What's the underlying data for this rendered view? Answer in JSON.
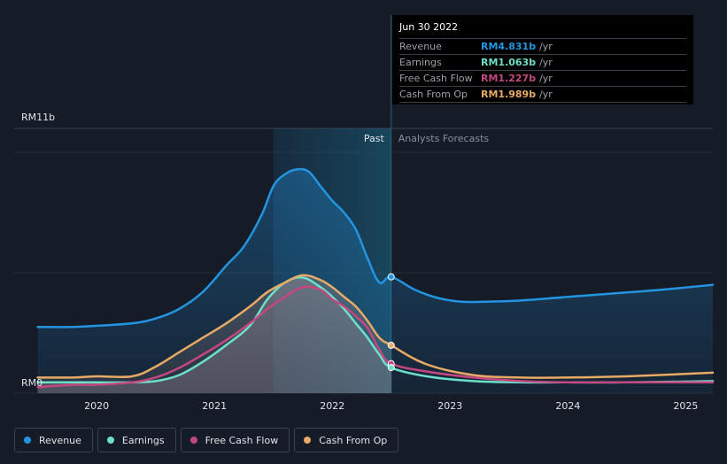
{
  "colors": {
    "revenue": "#2394df",
    "earnings": "#6ce0c8",
    "fcf": "#c4487f",
    "cfo": "#e8aa64",
    "background": "#151b27"
  },
  "tooltip": {
    "date": "Jun 30 2022",
    "rows": [
      {
        "label": "Revenue",
        "value": "RM4.831b",
        "unit": "/yr",
        "color": "#2394df"
      },
      {
        "label": "Earnings",
        "value": "RM1.063b",
        "unit": "/yr",
        "color": "#6ce0c8"
      },
      {
        "label": "Free Cash Flow",
        "value": "RM1.227b",
        "unit": "/yr",
        "color": "#c4487f"
      },
      {
        "label": "Cash From Op",
        "value": "RM1.989b",
        "unit": "/yr",
        "color": "#e8aa64"
      }
    ]
  },
  "chart_data": {
    "type": "line",
    "title": "",
    "ylabel": "",
    "ylim": [
      0,
      11
    ],
    "y_top_label": "RM11b",
    "y_bottom_label": "RM0",
    "x_ticks": [
      "2020",
      "2021",
      "2022",
      "2023",
      "2024",
      "2025"
    ],
    "x_tick_values": [
      2020,
      2021,
      2022,
      2023,
      2024,
      2025
    ],
    "xlim": [
      2019.3,
      2025.23
    ],
    "past_label": "Past",
    "forecast_label": "Analysts Forecasts",
    "divider_x": 2022.5,
    "highlight_range": [
      2021.5,
      2022.5
    ],
    "series": [
      {
        "name": "Revenue",
        "key": "revenue",
        "x": [
          2019.5,
          2019.8,
          2020.0,
          2020.3,
          2020.5,
          2020.7,
          2020.9,
          2021.1,
          2021.25,
          2021.4,
          2021.5,
          2021.6,
          2021.7,
          2021.8,
          2021.9,
          2022.0,
          2022.1,
          2022.2,
          2022.3,
          2022.4,
          2022.5,
          2022.7,
          2022.9,
          2023.1,
          2023.3,
          2023.6,
          2024.0,
          2024.4,
          2024.8,
          2025.23
        ],
        "values": [
          2.75,
          2.75,
          2.8,
          2.9,
          3.1,
          3.5,
          4.2,
          5.3,
          6.1,
          7.4,
          8.6,
          9.1,
          9.3,
          9.2,
          8.6,
          8.0,
          7.5,
          6.8,
          5.6,
          4.6,
          4.831,
          4.3,
          3.95,
          3.8,
          3.8,
          3.85,
          4.0,
          4.15,
          4.3,
          4.5
        ]
      },
      {
        "name": "Earnings",
        "key": "earnings",
        "x": [
          2019.5,
          2019.8,
          2020.0,
          2020.3,
          2020.5,
          2020.7,
          2020.9,
          2021.1,
          2021.3,
          2021.45,
          2021.6,
          2021.75,
          2021.9,
          2022.0,
          2022.1,
          2022.2,
          2022.3,
          2022.4,
          2022.5,
          2022.8,
          2023.2,
          2023.6,
          2024.0,
          2024.5,
          2025.23
        ],
        "values": [
          0.45,
          0.45,
          0.45,
          0.45,
          0.5,
          0.75,
          1.3,
          2.0,
          2.8,
          3.9,
          4.6,
          4.8,
          4.4,
          4.0,
          3.5,
          2.9,
          2.3,
          1.6,
          1.063,
          0.7,
          0.5,
          0.45,
          0.45,
          0.45,
          0.5
        ]
      },
      {
        "name": "Free Cash Flow",
        "key": "fcf",
        "x": [
          2019.5,
          2019.8,
          2020.0,
          2020.3,
          2020.5,
          2020.7,
          2020.9,
          2021.1,
          2021.3,
          2021.45,
          2021.6,
          2021.75,
          2021.9,
          2022.0,
          2022.1,
          2022.2,
          2022.3,
          2022.4,
          2022.5,
          2022.8,
          2023.2,
          2023.6,
          2024.0,
          2024.5,
          2025.23
        ],
        "values": [
          0.25,
          0.35,
          0.35,
          0.45,
          0.65,
          1.05,
          1.6,
          2.2,
          2.9,
          3.5,
          4.0,
          4.4,
          4.3,
          3.9,
          3.6,
          3.2,
          2.7,
          1.8,
          1.227,
          0.9,
          0.65,
          0.5,
          0.45,
          0.45,
          0.45
        ]
      },
      {
        "name": "Cash From Op",
        "key": "cfo",
        "x": [
          2019.5,
          2019.8,
          2020.0,
          2020.3,
          2020.5,
          2020.7,
          2020.9,
          2021.1,
          2021.3,
          2021.45,
          2021.6,
          2021.75,
          2021.9,
          2022.0,
          2022.1,
          2022.2,
          2022.3,
          2022.4,
          2022.5,
          2022.8,
          2023.2,
          2023.6,
          2024.0,
          2024.5,
          2025.23
        ],
        "values": [
          0.65,
          0.65,
          0.7,
          0.7,
          1.1,
          1.7,
          2.3,
          2.9,
          3.6,
          4.2,
          4.6,
          4.9,
          4.7,
          4.4,
          4.0,
          3.6,
          3.0,
          2.3,
          1.989,
          1.2,
          0.75,
          0.65,
          0.65,
          0.7,
          0.85
        ]
      }
    ],
    "markers": [
      {
        "key": "revenue",
        "x": 2022.5,
        "y": 4.831
      },
      {
        "key": "cfo",
        "x": 2022.5,
        "y": 1.989
      },
      {
        "key": "fcf",
        "x": 2022.5,
        "y": 1.227
      },
      {
        "key": "earnings",
        "x": 2022.5,
        "y": 1.063
      }
    ]
  },
  "legend": [
    {
      "label": "Revenue",
      "key": "revenue"
    },
    {
      "label": "Earnings",
      "key": "earnings"
    },
    {
      "label": "Free Cash Flow",
      "key": "fcf"
    },
    {
      "label": "Cash From Op",
      "key": "cfo"
    }
  ]
}
